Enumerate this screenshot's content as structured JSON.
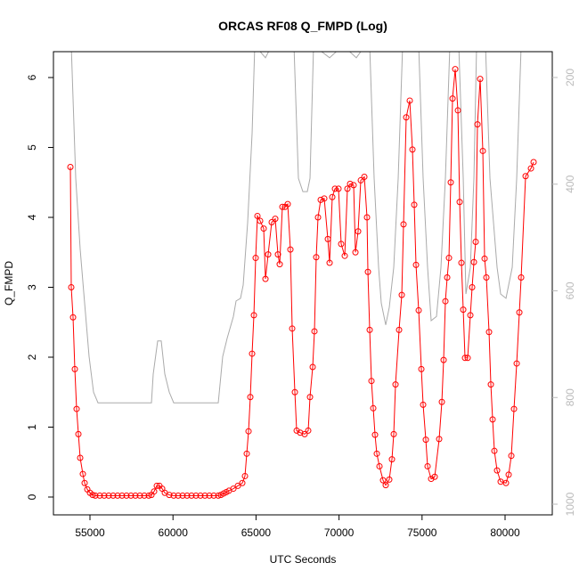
{
  "chart_data": {
    "type": "line",
    "title": "ORCAS RF08 Q_FMPD (Log)",
    "xlabel": "UTC Seconds",
    "ylabel": "Q_FMPD",
    "xlim": [
      52800,
      82843
    ],
    "xticks": [
      55000,
      60000,
      65000,
      70000,
      75000,
      80000
    ],
    "ylim": [
      -0.255,
      6.37
    ],
    "yticks": [
      0,
      1,
      2,
      3,
      4,
      5,
      6
    ],
    "y2lim": [
      1020,
      151.6
    ],
    "y2ticks": [
      200,
      400,
      600,
      800,
      1000
    ],
    "y2color": "#bbbbbb",
    "series": [
      {
        "color": "#aaaaaa",
        "axis": "y2",
        "markers": false,
        "x": [
          53873,
          54142,
          54410,
          54678,
          54946,
          55215,
          55483,
          58702,
          58809,
          59077,
          59292,
          59507,
          59775,
          60043,
          62726,
          62994,
          63262,
          63638,
          63799,
          64067,
          64228,
          64496,
          64764,
          64925,
          65569,
          65945,
          67286,
          67554,
          67822,
          68090,
          68252,
          68466,
          69432,
          70237,
          71041,
          71578,
          71846,
          72114,
          72383,
          72544,
          72812,
          73026,
          73295,
          73563,
          73831,
          74797,
          75065,
          75333,
          75548,
          75870,
          76138,
          76406,
          76675,
          77211,
          77480,
          77641,
          77909,
          78124,
          78285,
          78821,
          79090,
          79519,
          79734,
          80056,
          80431,
          80700,
          80968
        ],
        "values": [
          140,
          389,
          522,
          623,
          723,
          790,
          810,
          810,
          756,
          694,
          694,
          756,
          790,
          810,
          810,
          723,
          689,
          648,
          619,
          614,
          589,
          472,
          305,
          140,
          163,
          140,
          140,
          389,
          414,
          414,
          389,
          140,
          163,
          140,
          163,
          140,
          140,
          389,
          556,
          623,
          664,
          631,
          556,
          389,
          140,
          140,
          389,
          556,
          656,
          648,
          556,
          389,
          140,
          140,
          389,
          606,
          556,
          389,
          140,
          140,
          389,
          556,
          606,
          614,
          556,
          389,
          140
        ]
      },
      {
        "color": "#ff0000",
        "markers": true,
        "x": [
          53820,
          53873,
          53981,
          54088,
          54195,
          54303,
          54410,
          54571,
          54678,
          54839,
          55000,
          55161,
          55322,
          55590,
          55858,
          56127,
          56395,
          56663,
          56931,
          57200,
          57468,
          57736,
          58004,
          58273,
          58541,
          58702,
          58863,
          59024,
          59185,
          59346,
          59507,
          59775,
          60043,
          60311,
          60580,
          60848,
          61116,
          61384,
          61653,
          61921,
          62189,
          62457,
          62726,
          62886,
          63047,
          63208,
          63369,
          63638,
          63906,
          64174,
          64335,
          64442,
          64550,
          64657,
          64764,
          64872,
          64979,
          65086,
          65247,
          65462,
          65569,
          65730,
          65945,
          66159,
          66320,
          66427,
          66588,
          66749,
          66910,
          67071,
          67179,
          67340,
          67447,
          67661,
          67930,
          68144,
          68252,
          68413,
          68520,
          68627,
          68734,
          68895,
          69110,
          69325,
          69432,
          69593,
          69754,
          69968,
          70129,
          70344,
          70505,
          70666,
          70880,
          70988,
          71149,
          71310,
          71524,
          71685,
          71739,
          71846,
          71953,
          72061,
          72168,
          72275,
          72436,
          72651,
          72812,
          73026,
          73187,
          73295,
          73402,
          73617,
          73778,
          73885,
          74046,
          74260,
          74421,
          74529,
          74636,
          74797,
          74958,
          75065,
          75226,
          75333,
          75548,
          75763,
          76031,
          76192,
          76299,
          76406,
          76514,
          76621,
          76728,
          76836,
          76997,
          77158,
          77265,
          77372,
          77480,
          77587,
          77748,
          77909,
          78016,
          78124,
          78231,
          78338,
          78499,
          78660,
          78767,
          78874,
          79035,
          79143,
          79250,
          79357,
          79518,
          79733,
          80055,
          80216,
          80377,
          80538,
          80700,
          80861,
          80968,
          81236,
          81558,
          81719
        ],
        "values": [
          4.72,
          3.0,
          2.57,
          1.83,
          1.26,
          0.9,
          0.56,
          0.33,
          0.2,
          0.11,
          0.06,
          0.03,
          0.02,
          0.02,
          0.02,
          0.02,
          0.02,
          0.02,
          0.02,
          0.02,
          0.02,
          0.02,
          0.02,
          0.02,
          0.02,
          0.03,
          0.08,
          0.16,
          0.16,
          0.12,
          0.06,
          0.03,
          0.02,
          0.02,
          0.02,
          0.02,
          0.02,
          0.02,
          0.02,
          0.02,
          0.02,
          0.02,
          0.02,
          0.03,
          0.05,
          0.07,
          0.09,
          0.12,
          0.16,
          0.2,
          0.3,
          0.62,
          0.94,
          1.43,
          2.05,
          2.6,
          3.42,
          4.02,
          3.95,
          3.84,
          3.12,
          3.47,
          3.93,
          3.98,
          3.47,
          3.33,
          4.15,
          4.15,
          4.19,
          3.54,
          2.41,
          1.5,
          0.95,
          0.92,
          0.9,
          0.95,
          1.43,
          1.86,
          2.37,
          3.43,
          4.0,
          4.25,
          4.27,
          3.69,
          3.35,
          4.29,
          4.41,
          4.41,
          3.62,
          3.45,
          4.41,
          4.48,
          4.46,
          3.5,
          3.8,
          4.53,
          4.58,
          4.0,
          3.22,
          2.39,
          1.66,
          1.27,
          0.89,
          0.62,
          0.44,
          0.24,
          0.17,
          0.25,
          0.54,
          0.9,
          1.61,
          2.39,
          2.89,
          3.9,
          5.43,
          5.67,
          4.97,
          4.18,
          3.32,
          2.67,
          1.83,
          1.32,
          0.82,
          0.44,
          0.26,
          0.29,
          0.83,
          1.36,
          1.96,
          2.8,
          3.14,
          3.42,
          4.5,
          5.7,
          6.12,
          5.53,
          4.22,
          3.35,
          2.68,
          1.99,
          1.99,
          2.6,
          3.0,
          3.36,
          3.65,
          5.33,
          5.98,
          4.95,
          3.41,
          3.14,
          2.36,
          1.61,
          1.11,
          0.66,
          0.38,
          0.22,
          0.2,
          0.32,
          0.59,
          1.26,
          1.91,
          2.64,
          3.14,
          4.59,
          4.7,
          4.79
        ]
      }
    ]
  }
}
